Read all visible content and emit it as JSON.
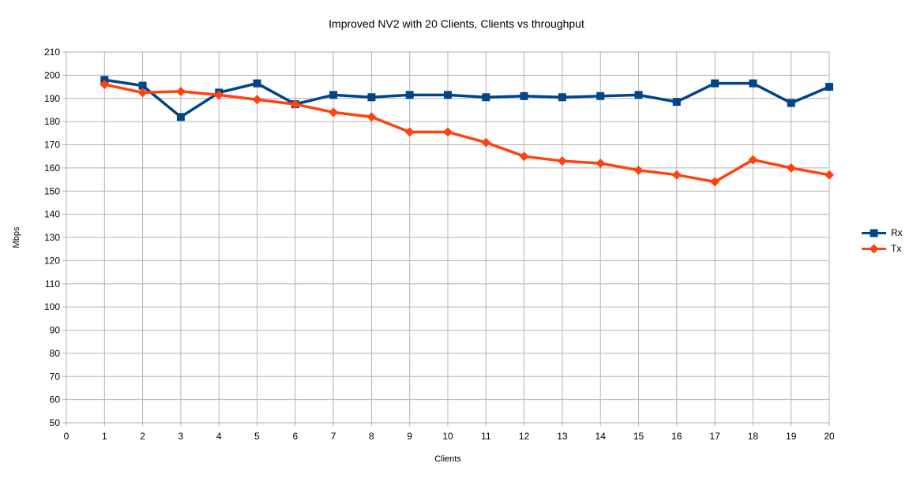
{
  "chart_data": {
    "type": "line",
    "title": "Improved NV2 with 20 Clients, Clients vs throughput",
    "xlabel": "Clients",
    "ylabel": "Mbps",
    "x": [
      1,
      2,
      3,
      4,
      5,
      6,
      7,
      8,
      9,
      10,
      11,
      12,
      13,
      14,
      15,
      16,
      17,
      18,
      19,
      20
    ],
    "series": [
      {
        "name": "Rx",
        "color": "#004586",
        "marker": "square",
        "values": [
          198,
          195.5,
          182,
          192.5,
          196.5,
          187.5,
          191.5,
          190.5,
          191.5,
          191.5,
          190.5,
          191,
          190.5,
          191,
          191.5,
          188.5,
          196.5,
          196.5,
          188,
          195
        ]
      },
      {
        "name": "Tx",
        "color": "#FF420E",
        "marker": "diamond",
        "values": [
          196,
          192.5,
          193,
          191.5,
          189.5,
          187.5,
          184,
          182,
          175.5,
          175.5,
          171,
          165,
          163,
          162,
          159,
          157,
          154,
          163.5,
          160,
          157
        ]
      }
    ],
    "xlim": [
      0,
      20
    ],
    "xstep": 1,
    "ylim": [
      50,
      210
    ],
    "ystep": 10,
    "grid": true,
    "legend_position": "right",
    "grid_color": "#B3B3B3",
    "text_color": "#000000",
    "background": "#FFFFFF"
  }
}
